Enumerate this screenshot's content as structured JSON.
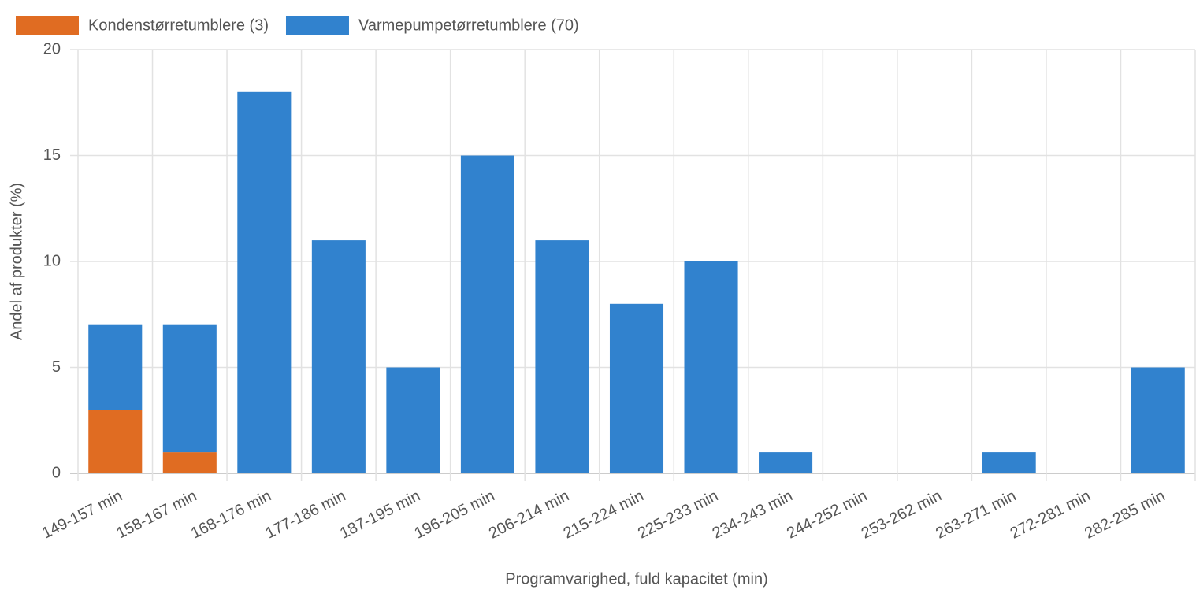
{
  "chart_data": {
    "type": "bar",
    "stacked": true,
    "x_label": "Programvarighed, fuld kapacitet (min)",
    "y_label": "Andel af produkter (%)",
    "categories": [
      "149-157 min",
      "158-167 min",
      "168-176 min",
      "177-186 min",
      "187-195 min",
      "196-205 min",
      "206-214 min",
      "215-224 min",
      "225-233 min",
      "234-243 min",
      "244-252 min",
      "253-262 min",
      "263-271 min",
      "272-281 min",
      "282-285 min"
    ],
    "series": [
      {
        "name": "Kondenstørretumblere (3)",
        "color": "#e06c22",
        "values": [
          3,
          1,
          0,
          0,
          0,
          0,
          0,
          0,
          0,
          0,
          0,
          0,
          0,
          0,
          0
        ]
      },
      {
        "name": "Varmepumpetørretumblere (70)",
        "color": "#3182ce",
        "values": [
          4,
          6,
          18,
          11,
          5,
          15,
          11,
          8,
          10,
          1,
          0,
          0,
          1,
          0,
          5
        ]
      }
    ],
    "ylim": [
      0,
      20
    ],
    "yticks": [
      0,
      5,
      10,
      15,
      20
    ],
    "grid": true
  }
}
